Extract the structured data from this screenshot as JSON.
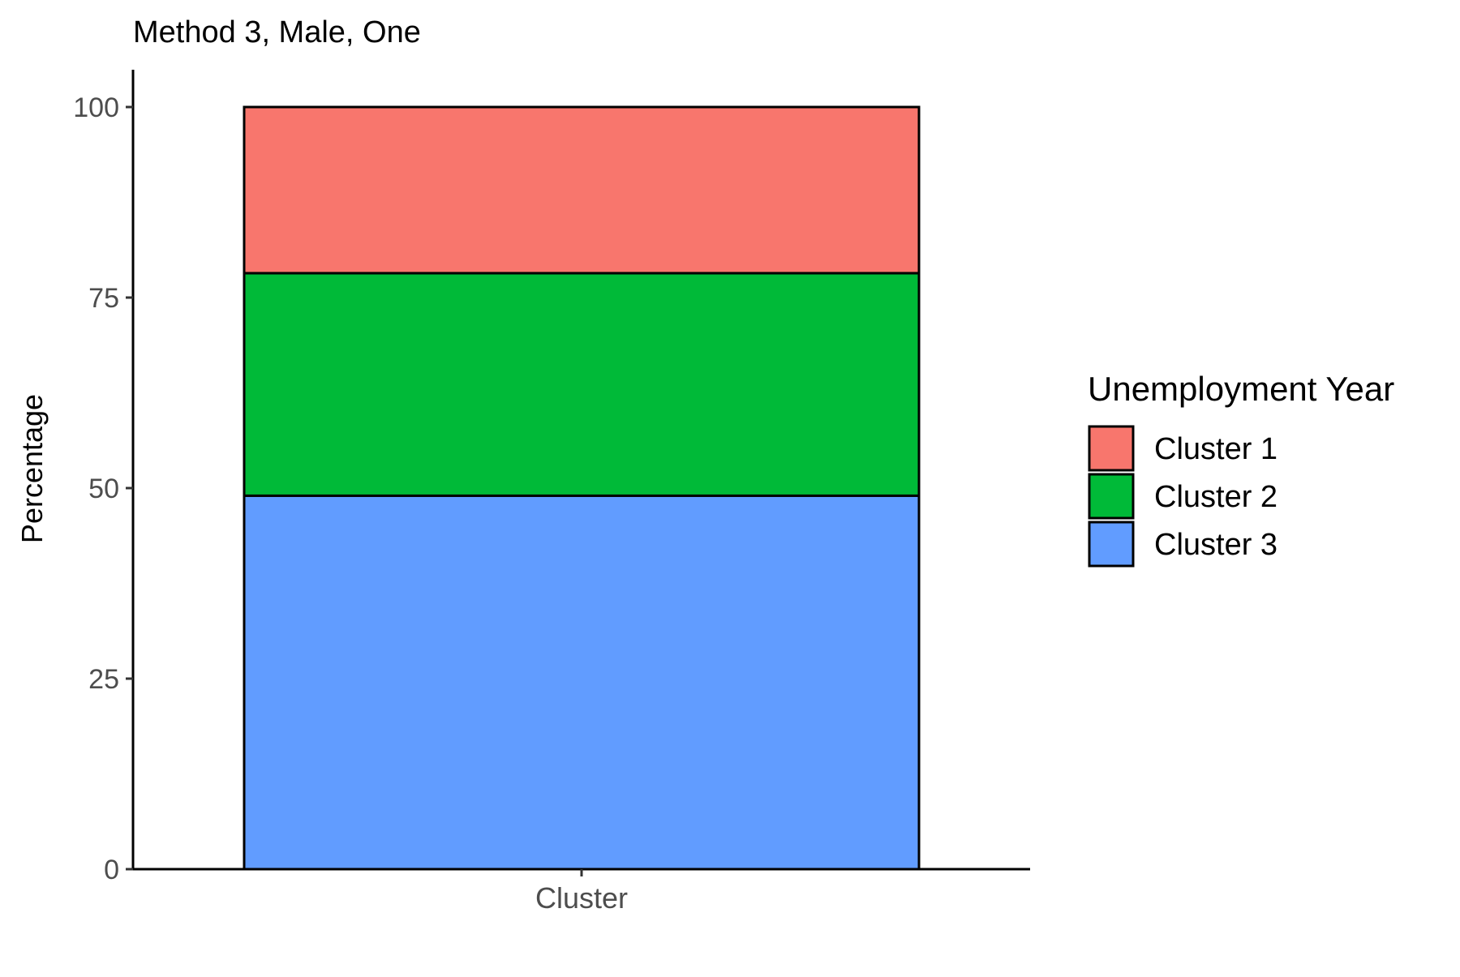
{
  "chart_data": {
    "type": "bar",
    "stacked": true,
    "title": "Method 3, Male, One",
    "xlabel": "",
    "ylabel": "Percentage",
    "categories": [
      "Cluster"
    ],
    "ylim": [
      0,
      100
    ],
    "yticks": [
      0,
      25,
      50,
      75,
      100
    ],
    "grid": false,
    "legend": {
      "title": "Unemployment Year",
      "placement": "right"
    },
    "series": [
      {
        "name": "Cluster 3",
        "values": [
          49
        ],
        "color": "#619CFF"
      },
      {
        "name": "Cluster 2",
        "values": [
          29.2
        ],
        "color": "#00BA38"
      },
      {
        "name": "Cluster 1",
        "values": [
          21.8
        ],
        "color": "#F8766D"
      }
    ],
    "legend_order": [
      "Cluster 1",
      "Cluster 2",
      "Cluster 3"
    ]
  }
}
